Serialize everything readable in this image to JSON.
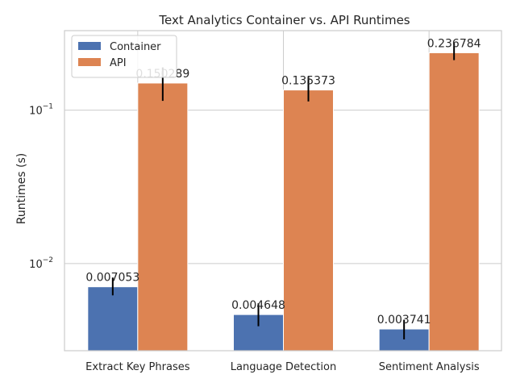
{
  "chart_data": {
    "type": "bar",
    "title": "Text Analytics Container vs. API Runtimes",
    "xlabel": "",
    "ylabel": "Runtimes (s)",
    "yscale": "log",
    "ylim": [
      0.0027,
      0.33
    ],
    "yticks": [
      {
        "value": 0.01,
        "base": "10",
        "exp": "−2"
      },
      {
        "value": 0.1,
        "base": "10",
        "exp": "−1"
      }
    ],
    "grid": true,
    "legend_position": "top-left",
    "categories": [
      "Extract Key Phrases",
      "Language Detection",
      "Sentiment Analysis"
    ],
    "series": [
      {
        "name": "Container",
        "color": "#4c72b0",
        "values": [
          0.007053,
          0.004648,
          0.003741
        ],
        "labels": [
          "0.007053",
          "0.004648",
          "0.003741"
        ],
        "errors": [
          [
            0.0062,
            0.0081
          ],
          [
            0.0039,
            0.0055
          ],
          [
            0.0032,
            0.0043
          ]
        ]
      },
      {
        "name": "API",
        "color": "#dd8452",
        "values": [
          0.150289,
          0.135373,
          0.236784
        ],
        "labels": [
          "0.150289",
          "0.135373",
          "0.236784"
        ],
        "errors": [
          [
            0.115,
            0.19
          ],
          [
            0.114,
            0.165
          ],
          [
            0.212,
            0.275
          ]
        ]
      }
    ]
  }
}
